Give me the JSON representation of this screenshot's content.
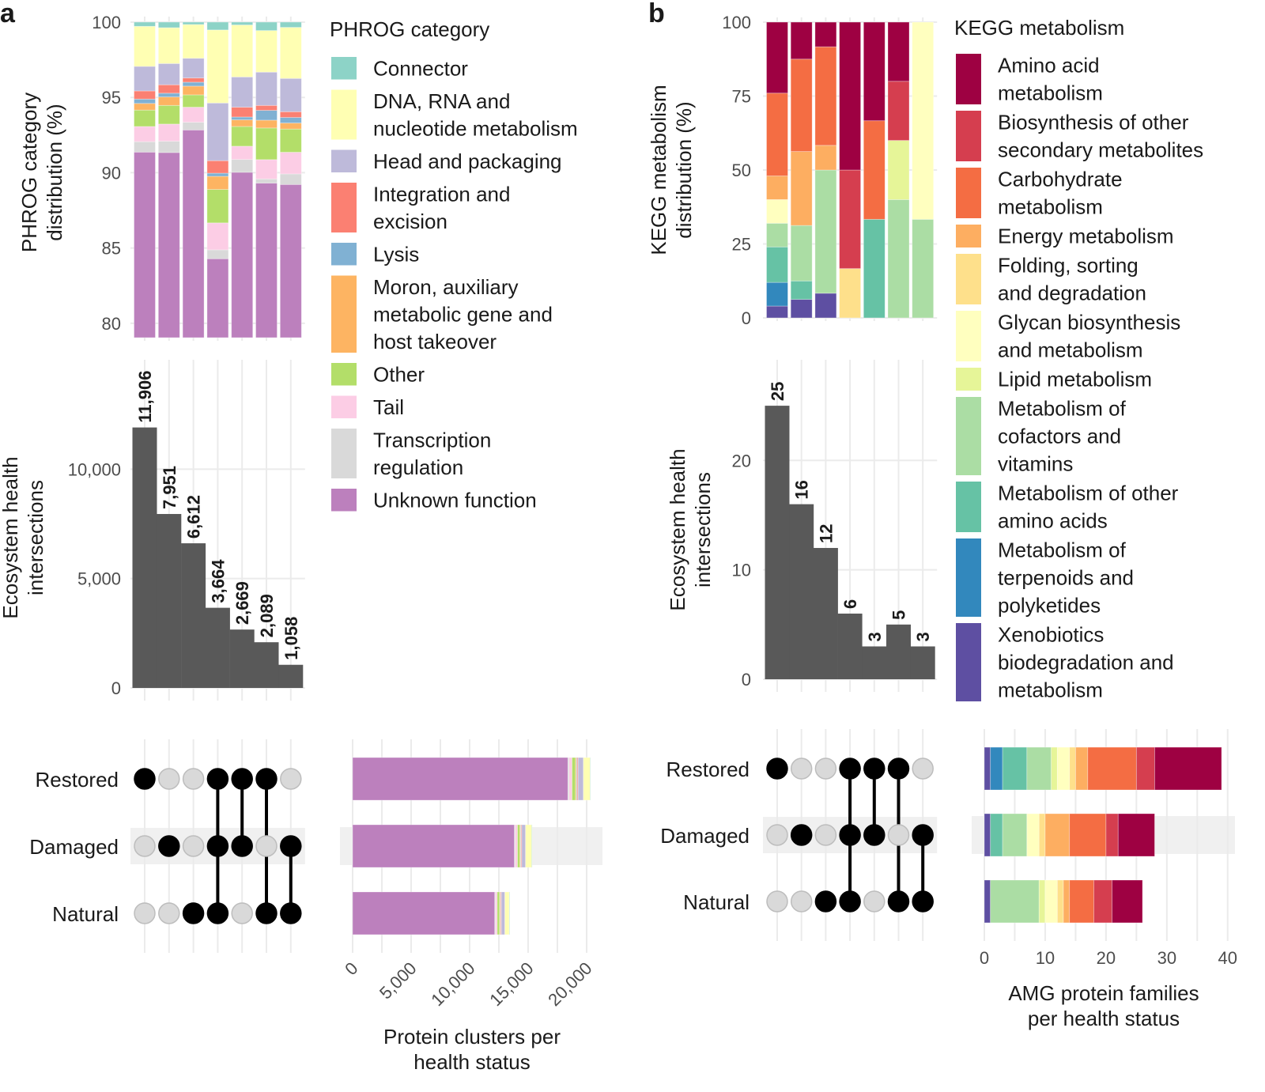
{
  "panel_labels": {
    "a": "a",
    "b": "b"
  },
  "set_rows": [
    "Restored",
    "Damaged",
    "Natural"
  ],
  "legends": {
    "phrog": {
      "title": "PHROG category",
      "items": [
        {
          "lines": [
            "Connector"
          ],
          "color": "#8dd3c7"
        },
        {
          "lines": [
            "DNA, RNA and",
            "nucleotide metabolism"
          ],
          "color": "#ffffb3"
        },
        {
          "lines": [
            "Head and packaging"
          ],
          "color": "#bebada"
        },
        {
          "lines": [
            "Integration and",
            "excision"
          ],
          "color": "#fb8072"
        },
        {
          "lines": [
            "Lysis"
          ],
          "color": "#80b1d3"
        },
        {
          "lines": [
            "Moron, auxiliary",
            "metabolic gene and",
            "host takeover"
          ],
          "color": "#fdb462"
        },
        {
          "lines": [
            "Other"
          ],
          "color": "#b3de69"
        },
        {
          "lines": [
            "Tail"
          ],
          "color": "#fccde5"
        },
        {
          "lines": [
            "Transcription",
            "regulation"
          ],
          "color": "#d9d9d9"
        },
        {
          "lines": [
            "Unknown function"
          ],
          "color": "#bc80bd"
        }
      ]
    },
    "kegg": {
      "title": "KEGG metabolism",
      "items": [
        {
          "lines": [
            "Amino acid",
            "metabolism"
          ],
          "color": "#9e0142"
        },
        {
          "lines": [
            "Biosynthesis of other",
            "secondary metabolites"
          ],
          "color": "#d53e4f"
        },
        {
          "lines": [
            "Carbohydrate",
            "metabolism"
          ],
          "color": "#f46d43"
        },
        {
          "lines": [
            "Energy metabolism"
          ],
          "color": "#fdae61"
        },
        {
          "lines": [
            "Folding, sorting",
            "and degradation"
          ],
          "color": "#fee08b"
        },
        {
          "lines": [
            "Glycan biosynthesis",
            "and metabolism"
          ],
          "color": "#ffffbf"
        },
        {
          "lines": [
            "Lipid metabolism"
          ],
          "color": "#e6f598"
        },
        {
          "lines": [
            "Metabolism of",
            "cofactors and",
            "vitamins"
          ],
          "color": "#abdda4"
        },
        {
          "lines": [
            "Metabolism of other",
            "amino acids"
          ],
          "color": "#66c2a5"
        },
        {
          "lines": [
            "Metabolism of",
            "terpenoids and",
            "polyketides"
          ],
          "color": "#3288bd"
        },
        {
          "lines": [
            "Xenobiotics",
            "biodegradation and",
            "metabolism"
          ],
          "color": "#5e4fa2"
        }
      ]
    }
  },
  "chart_data": [
    {
      "id": "a_distribution",
      "type": "bar",
      "stacked": true,
      "ylabel": [
        "PHROG category",
        "distribution (%)"
      ],
      "ylim": [
        79.05,
        100.05
      ],
      "yticks": [
        80,
        85,
        90,
        95,
        100
      ],
      "ytick_labels": [
        "80",
        "85",
        "90",
        "95",
        "100"
      ],
      "series_legend": "phrog",
      "values_by_intersection": [
        [
          0.28,
          2.66,
          1.63,
          0.54,
          0.29,
          0.44,
          1.09,
          1.01,
          0.69,
          91.37
        ],
        [
          0.37,
          2.38,
          1.41,
          0.56,
          0.25,
          0.56,
          1.24,
          1.14,
          0.75,
          91.34
        ],
        [
          0.16,
          2.24,
          1.31,
          0.28,
          0.26,
          0.58,
          0.82,
          1.0,
          0.51,
          92.84
        ],
        [
          0.52,
          4.85,
          3.83,
          0.83,
          0.21,
          0.87,
          2.22,
          1.79,
          0.59,
          84.29
        ],
        [
          0.19,
          3.45,
          2.01,
          0.65,
          0.19,
          0.44,
          1.31,
          0.88,
          0.85,
          90.03
        ],
        [
          0.56,
          2.76,
          2.21,
          0.33,
          0.65,
          0.52,
          2.1,
          1.28,
          0.28,
          89.31
        ],
        [
          0.35,
          3.39,
          2.21,
          0.38,
          0.37,
          0.4,
          1.54,
          1.44,
          0.7,
          89.22
        ]
      ]
    },
    {
      "id": "a_intersections",
      "type": "bar",
      "ylabel": [
        "Ecosystem health",
        "intersections"
      ],
      "ylim": [
        0,
        15000
      ],
      "yticks": [
        0,
        5000,
        10000
      ],
      "ytick_labels": [
        "0",
        "5,000",
        "10,000"
      ],
      "values": [
        11906,
        7951,
        6612,
        3664,
        2669,
        2089,
        1058
      ],
      "data_labels": [
        "11,906",
        "7,951",
        "6,612",
        "3,664",
        "2,669",
        "2,089",
        "1,058"
      ],
      "bar_color": "#595959",
      "sets": [
        [
          1,
          0,
          0
        ],
        [
          0,
          1,
          0
        ],
        [
          0,
          0,
          1
        ],
        [
          1,
          1,
          1
        ],
        [
          1,
          1,
          0
        ],
        [
          1,
          0,
          1
        ],
        [
          0,
          1,
          1
        ]
      ]
    },
    {
      "id": "a_set_sizes",
      "type": "bar",
      "orientation": "horizontal",
      "stacked": true,
      "categories": [
        "Restored",
        "Damaged",
        "Natural"
      ],
      "xlabel": [
        "Protein clusters per",
        "health status"
      ],
      "xlim": [
        0,
        21350
      ],
      "xticks": [
        0,
        5000,
        10000,
        15000,
        20000
      ],
      "xtick_labels": [
        "0",
        "5,000",
        "10,000",
        "15,000",
        "20,000"
      ],
      "series_legend": "phrog",
      "values": [
        [
          28,
          580,
          450,
          80,
          60,
          80,
          300,
          250,
          100,
          18400
        ],
        [
          32,
          530,
          330,
          60,
          40,
          60,
          200,
          200,
          60,
          13830
        ],
        [
          33,
          380,
          300,
          60,
          40,
          50,
          200,
          150,
          60,
          12150
        ]
      ]
    },
    {
      "id": "b_distribution",
      "type": "bar",
      "stacked": true,
      "ylabel": [
        "KEGG metabolism",
        "distribution (%)"
      ],
      "ylim": [
        0,
        100
      ],
      "yticks": [
        0,
        25,
        50,
        75,
        100
      ],
      "ytick_labels": [
        "0",
        "25",
        "50",
        "75",
        "100"
      ],
      "series_legend": "kegg",
      "values_by_intersection": [
        [
          24,
          0,
          28,
          8,
          0,
          8,
          0,
          8,
          12,
          8,
          4
        ],
        [
          12.5,
          0,
          31.25,
          25,
          0,
          0,
          0,
          18.75,
          6.25,
          0,
          6.25
        ],
        [
          8.33,
          0,
          33.33,
          8.33,
          0,
          0,
          0,
          41.67,
          0,
          0,
          8.33
        ],
        [
          50,
          33.33,
          0,
          0,
          16.67,
          0,
          0,
          0,
          0,
          0,
          0
        ],
        [
          33.33,
          0,
          33.33,
          0,
          0,
          0,
          0,
          0,
          33.33,
          0,
          0
        ],
        [
          20,
          20,
          0,
          0,
          0,
          0,
          20,
          40,
          0,
          0,
          0
        ],
        [
          0,
          0,
          0,
          0,
          0,
          66.67,
          0,
          33.33,
          0,
          0,
          0
        ]
      ]
    },
    {
      "id": "b_intersections",
      "type": "bar",
      "ylabel": [
        "Ecosystem health",
        "intersections"
      ],
      "ylim": [
        0,
        29.2
      ],
      "yticks": [
        0,
        10,
        20
      ],
      "ytick_labels": [
        "0",
        "10",
        "20"
      ],
      "values": [
        25,
        16,
        12,
        6,
        3,
        5,
        3
      ],
      "data_labels": [
        "25",
        "16",
        "12",
        "6",
        "3",
        "5",
        "3"
      ],
      "bar_color": "#595959",
      "sets": [
        [
          1,
          0,
          0
        ],
        [
          0,
          1,
          0
        ],
        [
          0,
          0,
          1
        ],
        [
          1,
          1,
          1
        ],
        [
          1,
          1,
          0
        ],
        [
          1,
          0,
          1
        ],
        [
          0,
          1,
          1
        ]
      ]
    },
    {
      "id": "b_set_sizes",
      "type": "bar",
      "orientation": "horizontal",
      "stacked": true,
      "categories": [
        "Restored",
        "Damaged",
        "Natural"
      ],
      "xlabel": [
        "AMG protein families",
        "per health status"
      ],
      "xlim": [
        0,
        41.2
      ],
      "xticks": [
        0,
        10,
        20,
        30,
        40
      ],
      "xtick_labels": [
        "0",
        "10",
        "20",
        "30",
        "40"
      ],
      "series_legend": "kegg",
      "values": [
        [
          11,
          3,
          8,
          2,
          1,
          2,
          1,
          4,
          4,
          2,
          1
        ],
        [
          6,
          2,
          6,
          4,
          1,
          2,
          0,
          4,
          2,
          0,
          1
        ],
        [
          5,
          3,
          4,
          1,
          1,
          2,
          1,
          8,
          0,
          0,
          1
        ]
      ]
    }
  ]
}
